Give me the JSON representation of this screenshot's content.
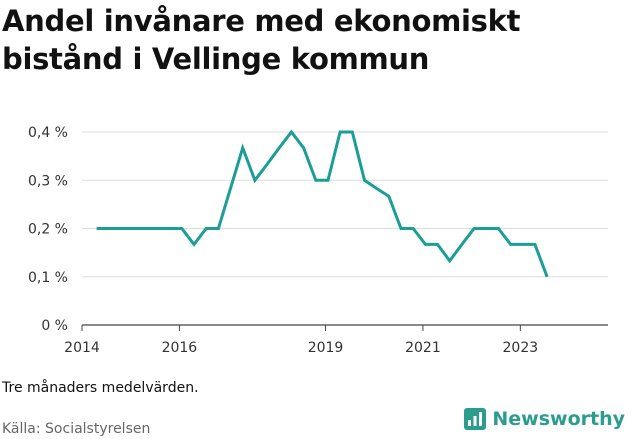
{
  "header": {
    "title_line1": "Andel invånare med ekonomiskt",
    "title_line2": "bistånd i Vellinge kommun"
  },
  "footer": {
    "note": "Tre månaders medelvärden.",
    "source": "Källa: Socialstyrelsen",
    "brand": "Newsworthy",
    "brand_icon": "chart-icon"
  },
  "colors": {
    "line": "#1a9e95",
    "grid": "#dddddd",
    "axis": "#444444",
    "brand": "#2a9d8f"
  },
  "chart_data": {
    "type": "line",
    "title": "Andel invånare med ekonomiskt bistånd i Vellinge kommun",
    "xlabel": "",
    "ylabel": "",
    "xlim": [
      2014.0,
      2024.8
    ],
    "ylim": [
      0,
      0.4
    ],
    "y_ticks": [
      0,
      0.1,
      0.2,
      0.3,
      0.4
    ],
    "y_tick_labels": [
      "0 %",
      "0,1 %",
      "0,2 %",
      "0,3 %",
      "0,4 %"
    ],
    "x_ticks": [
      2014,
      2016,
      2019,
      2021,
      2023
    ],
    "x_tick_labels": [
      "2014",
      "2016",
      "2019",
      "2021",
      "2023"
    ],
    "grid": true,
    "series": [
      {
        "x": [
          2014.3,
          2014.55,
          2014.8,
          2015.05,
          2015.3,
          2015.55,
          2015.8,
          2016.05,
          2016.3,
          2016.55,
          2016.8,
          2017.3,
          2017.55,
          2017.8,
          2018.05,
          2018.3,
          2018.55,
          2018.8,
          2019.05,
          2019.3,
          2019.55,
          2019.8,
          2020.05,
          2020.3,
          2020.55,
          2020.8,
          2021.05,
          2021.3,
          2021.55,
          2021.8,
          2022.05,
          2022.3,
          2022.55,
          2022.8,
          2023.05,
          2023.3,
          2023.55
        ],
        "y": [
          0.2,
          0.2,
          0.2,
          0.2,
          0.2,
          0.2,
          0.2,
          0.2,
          0.167,
          0.2,
          0.2,
          0.367,
          0.3,
          0.333,
          0.367,
          0.4,
          0.367,
          0.3,
          0.3,
          0.4,
          0.4,
          0.3,
          0.283,
          0.267,
          0.2,
          0.2,
          0.167,
          0.167,
          0.133,
          0.167,
          0.2,
          0.2,
          0.2,
          0.167,
          0.167,
          0.167,
          0.1
        ]
      }
    ]
  }
}
